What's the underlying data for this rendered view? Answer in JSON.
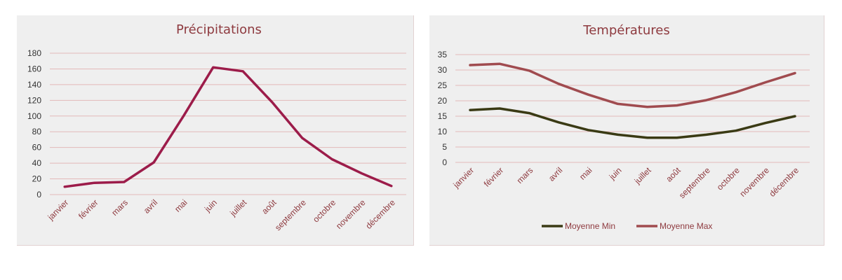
{
  "chart_data": [
    {
      "type": "line",
      "title": "Précipitations",
      "categories": [
        "janvier",
        "février",
        "mars",
        "avril",
        "mai",
        "juin",
        "juillet",
        "août",
        "septembre",
        "octobre",
        "novembre",
        "décembre"
      ],
      "series": [
        {
          "values": [
            10,
            15,
            16,
            41,
            100,
            162,
            157,
            117,
            72,
            45,
            27,
            11
          ],
          "color": "#9c1c4a"
        }
      ],
      "ylim": [
        0,
        180
      ],
      "yticks": [
        0,
        20,
        40,
        60,
        80,
        100,
        120,
        140,
        160,
        180
      ],
      "grid": true,
      "legend": "none"
    },
    {
      "type": "line",
      "title": "Températures",
      "categories": [
        "janvier",
        "février",
        "mars",
        "avril",
        "mai",
        "juin",
        "juillet",
        "août",
        "septembre",
        "octobre",
        "novembre",
        "décembre"
      ],
      "series": [
        {
          "name": "Moyenne Min",
          "values": [
            17,
            17.5,
            16,
            13,
            10.5,
            9,
            8,
            8,
            9,
            10.3,
            12.8,
            15
          ],
          "color": "#3a3a14"
        },
        {
          "name": "Moyenne Max",
          "values": [
            31.6,
            32,
            29.8,
            25.5,
            22,
            19,
            18,
            18.5,
            20.2,
            22.8,
            26,
            29
          ],
          "color": "#a04b4f"
        }
      ],
      "ylim": [
        0,
        35
      ],
      "yticks": [
        0,
        5,
        10,
        15,
        20,
        25,
        30,
        35
      ],
      "grid": true,
      "legend": "bottom"
    }
  ]
}
